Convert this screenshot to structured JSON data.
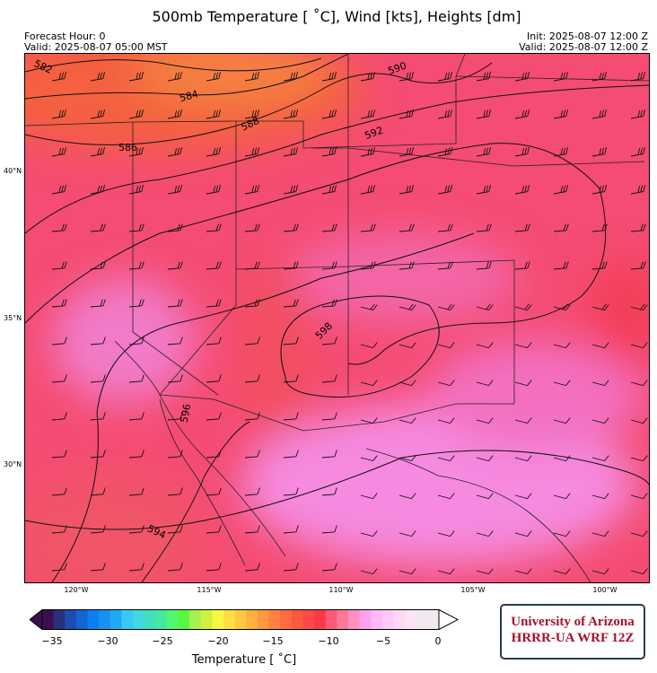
{
  "header": {
    "title": "500mb Temperature [ $^\\circ C$], Wind [kts], Heights [dm]",
    "title_display": "500mb Temperature [ ˚C], Wind [kts], Heights [dm]",
    "forecast_hour": "Forecast Hour: 0",
    "valid_local": "Valid: 2025-08-07 05:00 MST",
    "init": "Init: 2025-08-07 12:00 Z",
    "valid_utc": "Valid: 2025-08-07 12:00 Z"
  },
  "map": {
    "lat_labels": [
      "40°N",
      "35°N",
      "30°N"
    ],
    "lon_labels": [
      "120°W",
      "115°W",
      "110°W",
      "105°W",
      "100°W"
    ],
    "height_contour_labels": [
      "582",
      "584",
      "586",
      "588",
      "590",
      "592",
      "594",
      "596",
      "598"
    ]
  },
  "colorbar": {
    "label": "Temperature [ ˚C]",
    "ticks": [
      "−35",
      "−30",
      "−25",
      "−20",
      "−15",
      "−10",
      "−5",
      "0"
    ],
    "range": [
      -35,
      0
    ],
    "colors": [
      "#3b0f4f",
      "#283080",
      "#1f4cb0",
      "#1466d0",
      "#0a80f0",
      "#1a90f0",
      "#20a8f8",
      "#38c8f8",
      "#40d8e0",
      "#40e0c0",
      "#44eaa0",
      "#50f870",
      "#58f840",
      "#a8f050",
      "#d0f040",
      "#f8f840",
      "#ffe040",
      "#ffc840",
      "#ffb040",
      "#ff9840",
      "#ff8040",
      "#ff6c40",
      "#ff5840",
      "#ff4848",
      "#ff3848",
      "#ff5878",
      "#ff7898",
      "#ff90c0",
      "#ffa0f0",
      "#ffb8f8",
      "#ffc8f8",
      "#ffd8f4",
      "#fce4f4",
      "#f4e8f0",
      "#f0eaf0"
    ]
  },
  "logo": {
    "line1": "University of Arizona",
    "line2": "HRRR-UA WRF 12Z"
  }
}
